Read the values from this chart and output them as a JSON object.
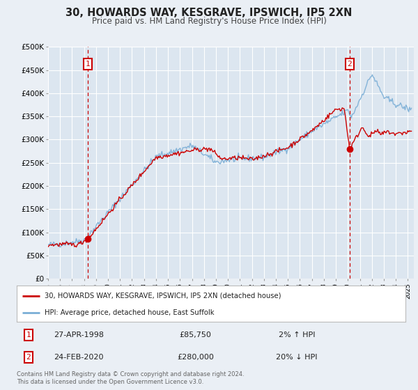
{
  "title": "30, HOWARDS WAY, KESGRAVE, IPSWICH, IP5 2XN",
  "subtitle": "Price paid vs. HM Land Registry's House Price Index (HPI)",
  "bg_color": "#eaeff5",
  "plot_bg_color": "#dce6f0",
  "yticks": [
    0,
    50000,
    100000,
    150000,
    200000,
    250000,
    300000,
    350000,
    400000,
    450000,
    500000
  ],
  "ytick_labels": [
    "£0",
    "£50K",
    "£100K",
    "£150K",
    "£200K",
    "£250K",
    "£300K",
    "£350K",
    "£400K",
    "£450K",
    "£500K"
  ],
  "xmin": 1995.0,
  "xmax": 2025.5,
  "ymin": 0,
  "ymax": 500000,
  "sale1_x": 1998.32,
  "sale1_y": 85750,
  "sale1_label": "1",
  "sale1_date": "27-APR-1998",
  "sale1_price": "£85,750",
  "sale1_hpi": "2% ↑ HPI",
  "sale2_x": 2020.15,
  "sale2_y": 280000,
  "sale2_label": "2",
  "sale2_date": "24-FEB-2020",
  "sale2_price": "£280,000",
  "sale2_hpi": "20% ↓ HPI",
  "line_color_red": "#cc0000",
  "line_color_blue": "#7aaed6",
  "legend_label_red": "30, HOWARDS WAY, KESGRAVE, IPSWICH, IP5 2XN (detached house)",
  "legend_label_blue": "HPI: Average price, detached house, East Suffolk",
  "footer": "Contains HM Land Registry data © Crown copyright and database right 2024.\nThis data is licensed under the Open Government Licence v3.0.",
  "grid_color": "#ffffff",
  "vline_color": "#cc0000",
  "marker_color": "#cc0000",
  "annotation_box_color": "#cc0000"
}
